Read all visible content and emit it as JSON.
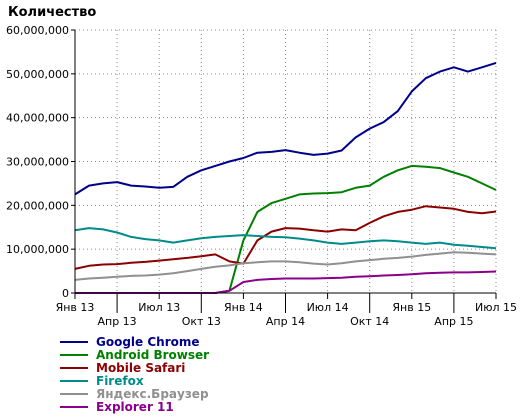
{
  "chart_data": {
    "type": "line",
    "title": "",
    "xlabel": "",
    "ylabel": "Количество",
    "ylim": [
      0,
      60000000
    ],
    "yticks": [
      0,
      10000000,
      20000000,
      30000000,
      40000000,
      50000000,
      60000000
    ],
    "ytick_labels": [
      "0",
      "10,000,000",
      "20,000,000",
      "30,000,000",
      "40,000,000",
      "50,000,000",
      "60,000,000"
    ],
    "x": [
      "2013-01",
      "2013-02",
      "2013-03",
      "2013-04",
      "2013-05",
      "2013-06",
      "2013-07",
      "2013-08",
      "2013-09",
      "2013-10",
      "2013-11",
      "2013-12",
      "2014-01",
      "2014-02",
      "2014-03",
      "2014-04",
      "2014-05",
      "2014-06",
      "2014-07",
      "2014-08",
      "2014-09",
      "2014-10",
      "2014-11",
      "2014-12",
      "2015-01",
      "2015-02",
      "2015-03",
      "2015-04",
      "2015-05",
      "2015-06",
      "2015-07"
    ],
    "xtick_labels_row1": [
      "Янв 13",
      "Июл 13",
      "Янв 14",
      "Июл 14",
      "Янв 15",
      "Июл 15"
    ],
    "xtick_labels_row1_index": [
      0,
      6,
      12,
      18,
      24,
      30
    ],
    "xtick_labels_row2": [
      "Апр 13",
      "Окт 13",
      "Апр 14",
      "Окт 14",
      "Апр 15"
    ],
    "xtick_labels_row2_index": [
      3,
      9,
      15,
      21,
      27
    ],
    "grid": true,
    "legend_position": "bottom",
    "series": [
      {
        "name": "Google Chrome",
        "color": "#00008b",
        "values": [
          22500000,
          24500000,
          25000000,
          25300000,
          24500000,
          24300000,
          24000000,
          24200000,
          26500000,
          28000000,
          29000000,
          30000000,
          30800000,
          32000000,
          32200000,
          32600000,
          32000000,
          31500000,
          31800000,
          32500000,
          35500000,
          37500000,
          39000000,
          41500000,
          46000000,
          49000000,
          50500000,
          51500000,
          50500000,
          51500000,
          52500000
        ]
      },
      {
        "name": "Android Browser",
        "color": "#008000",
        "values": [
          0,
          0,
          0,
          0,
          0,
          0,
          0,
          0,
          0,
          0,
          0,
          500000,
          12000000,
          18500000,
          20500000,
          21500000,
          22500000,
          22700000,
          22800000,
          23000000,
          24000000,
          24500000,
          26500000,
          28000000,
          29000000,
          28800000,
          28500000,
          27500000,
          26500000,
          25000000,
          23500000
        ]
      },
      {
        "name": "Mobile Safari",
        "color": "#8b0000",
        "values": [
          5500000,
          6200000,
          6500000,
          6600000,
          6900000,
          7100000,
          7400000,
          7700000,
          8000000,
          8400000,
          8800000,
          7200000,
          6700000,
          12000000,
          14000000,
          14800000,
          14700000,
          14300000,
          14000000,
          14500000,
          14300000,
          16000000,
          17500000,
          18500000,
          19000000,
          19800000,
          19500000,
          19200000,
          18500000,
          18200000,
          18600000
        ]
      },
      {
        "name": "Firefox",
        "color": "#008b8b",
        "values": [
          14300000,
          14800000,
          14500000,
          13800000,
          12800000,
          12300000,
          12000000,
          11500000,
          12000000,
          12500000,
          12800000,
          13000000,
          13200000,
          13000000,
          12800000,
          12700000,
          12400000,
          12000000,
          11500000,
          11200000,
          11500000,
          11800000,
          12000000,
          11800000,
          11500000,
          11200000,
          11500000,
          11000000,
          10800000,
          10500000,
          10200000
        ]
      },
      {
        "name": "Яндекс.Браузер",
        "color": "#909090",
        "values": [
          3000000,
          3300000,
          3500000,
          3700000,
          3900000,
          4000000,
          4200000,
          4500000,
          5000000,
          5500000,
          6000000,
          6300000,
          6800000,
          7000000,
          7200000,
          7200000,
          7000000,
          6700000,
          6500000,
          6800000,
          7200000,
          7500000,
          7800000,
          8000000,
          8300000,
          8700000,
          9000000,
          9300000,
          9200000,
          9000000,
          8800000
        ]
      },
      {
        "name": "Explorer 11",
        "color": "#8b008b",
        "values": [
          0,
          0,
          0,
          0,
          0,
          0,
          0,
          0,
          0,
          0,
          0,
          500000,
          2500000,
          3000000,
          3200000,
          3300000,
          3300000,
          3300000,
          3400000,
          3500000,
          3700000,
          3800000,
          4000000,
          4100000,
          4300000,
          4500000,
          4600000,
          4700000,
          4700000,
          4800000,
          4900000
        ]
      }
    ]
  }
}
